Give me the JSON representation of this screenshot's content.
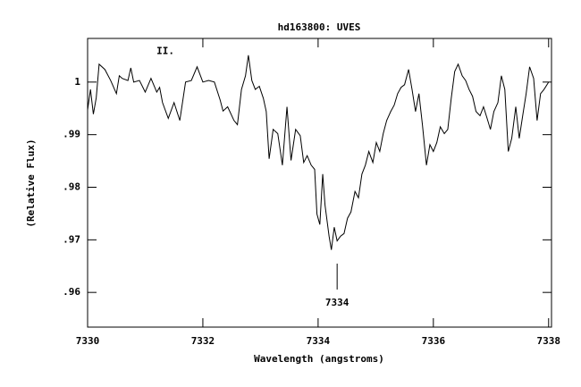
{
  "chart_data": {
    "type": "line",
    "title": "hd163800: UVES",
    "x_label": "Wavelength (angstroms)",
    "y_label": "(Relative Flux)",
    "x": [
      7330,
      7330.05,
      7330.1,
      7330.15,
      7330.2,
      7330.3,
      7330.4,
      7330.5,
      7330.55,
      7330.6,
      7330.7,
      7330.75,
      7330.8,
      7330.9,
      7331,
      7331.1,
      7331.2,
      7331.25,
      7331.3,
      7331.4,
      7331.5,
      7331.6,
      7331.7,
      7331.8,
      7331.9,
      7332,
      7332.1,
      7332.2,
      7332.3,
      7332.35,
      7332.43,
      7332.54,
      7332.6,
      7332.67,
      7332.74,
      7332.79,
      7332.85,
      7332.91,
      7332.98,
      7333.05,
      7333.1,
      7333.15,
      7333.22,
      7333.3,
      7333.38,
      7333.46,
      7333.53,
      7333.61,
      7333.69,
      7333.75,
      7333.81,
      7333.88,
      7333.94,
      7333.98,
      7334.03,
      7334.08,
      7334.12,
      7334.19,
      7334.23,
      7334.28,
      7334.33,
      7334.39,
      7334.45,
      7334.51,
      7334.57,
      7334.64,
      7334.7,
      7334.76,
      7334.82,
      7334.88,
      7334.95,
      7335.01,
      7335.07,
      7335.13,
      7335.19,
      7335.26,
      7335.32,
      7335.38,
      7335.44,
      7335.5,
      7335.57,
      7335.63,
      7335.69,
      7335.75,
      7335.81,
      7335.88,
      7335.94,
      7336,
      7336.06,
      7336.12,
      7336.19,
      7336.25,
      7336.31,
      7336.37,
      7336.43,
      7336.5,
      7336.56,
      7336.62,
      7336.68,
      7336.74,
      7336.81,
      7336.87,
      7336.93,
      7336.99,
      7337.05,
      7337.12,
      7337.18,
      7337.24,
      7337.3,
      7337.36,
      7337.43,
      7337.49,
      7337.55,
      7337.61,
      7337.67,
      7337.74,
      7337.8,
      7337.86,
      7337.92,
      7338
    ],
    "series": [
      {
        "name": "flux",
        "color": "#000000",
        "values": [
          0.9947,
          0.9986,
          0.9939,
          0.997,
          1.0034,
          1.0024,
          1.0003,
          0.9978,
          1.0012,
          1.0007,
          1.0003,
          1.0027,
          1.0,
          1.0003,
          0.9981,
          1.0007,
          0.9981,
          0.999,
          0.9961,
          0.9931,
          0.9961,
          0.9927,
          1.0,
          1.0003,
          1.0029,
          1.0,
          1.0003,
          1.0,
          0.9966,
          0.9945,
          0.9953,
          0.9927,
          0.9919,
          0.9986,
          1.0012,
          1.0051,
          1.0003,
          0.9986,
          0.9992,
          0.9969,
          0.9944,
          0.9854,
          0.991,
          0.9902,
          0.9842,
          0.9953,
          0.9851,
          0.991,
          0.9898,
          0.9847,
          0.986,
          0.9842,
          0.9834,
          0.9749,
          0.9729,
          0.9825,
          0.9766,
          0.9707,
          0.9681,
          0.9724,
          0.9698,
          0.9707,
          0.9712,
          0.9741,
          0.9753,
          0.9792,
          0.978,
          0.9825,
          0.9842,
          0.9868,
          0.9847,
          0.9885,
          0.9868,
          0.9902,
          0.9927,
          0.9944,
          0.9956,
          0.9978,
          0.999,
          0.9995,
          1.0024,
          0.9986,
          0.9944,
          0.9978,
          0.9919,
          0.9842,
          0.9881,
          0.9868,
          0.9885,
          0.9915,
          0.9902,
          0.991,
          0.9969,
          1.002,
          1.0034,
          1.0012,
          1.0003,
          0.9986,
          0.9973,
          0.9944,
          0.9936,
          0.9953,
          0.9932,
          0.991,
          0.9944,
          0.9961,
          1.0012,
          0.9986,
          0.9868,
          0.9893,
          0.9953,
          0.9893,
          0.9936,
          0.9978,
          1.0029,
          1.0007,
          0.9927,
          0.9978,
          0.9986,
          1.0
        ]
      }
    ],
    "xlim": [
      7330,
      7338.05
    ],
    "ylim": [
      0.9534,
      1.0083
    ],
    "xticks": [
      7330,
      7332,
      7334,
      7336,
      7338
    ],
    "yticks": [
      {
        "value": 0.96,
        "label": ".96"
      },
      {
        "value": 0.97,
        "label": ".97"
      },
      {
        "value": 0.98,
        "label": ".98"
      },
      {
        "value": 0.99,
        "label": ".99"
      },
      1
    ],
    "annotations": [
      {
        "text": "II.",
        "x": 7331.35,
        "y": 1.0058
      },
      {
        "text": "7334",
        "x": 7334.33,
        "y": 0.958
      }
    ]
  }
}
